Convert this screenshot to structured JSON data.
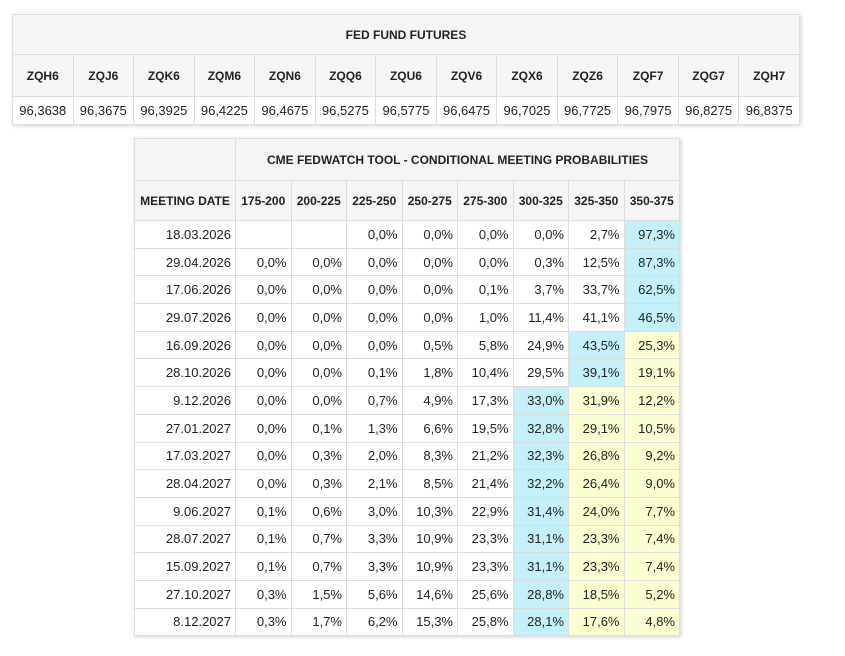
{
  "futures": {
    "title": "FED FUND FUTURES",
    "headers": [
      "ZQH6",
      "ZQJ6",
      "ZQK6",
      "ZQM6",
      "ZQN6",
      "ZQQ6",
      "ZQU6",
      "ZQV6",
      "ZQX6",
      "ZQZ6",
      "ZQF7",
      "ZQG7",
      "ZQH7"
    ],
    "values": [
      "96,3638",
      "96,3675",
      "96,3925",
      "96,4225",
      "96,4675",
      "96,5275",
      "96,5775",
      "96,6475",
      "96,7025",
      "96,7725",
      "96,7975",
      "96,8275",
      "96,8375"
    ]
  },
  "probabilities": {
    "title": "CME FEDWATCH TOOL - CONDITIONAL MEETING PROBABILITIES",
    "headers": [
      "MEETING DATE",
      "175-200",
      "200-225",
      "225-250",
      "250-275",
      "275-300",
      "300-325",
      "325-350",
      "350-375"
    ],
    "highlight_colors": {
      "max": "#c4f1f9",
      "above": "#fdfdd2"
    },
    "rows": [
      [
        "18.03.2026",
        null,
        null,
        "0,0%",
        "0,0%",
        "0,0%",
        "0,0%",
        "2,7%",
        "97,3%"
      ],
      [
        "29.04.2026",
        "0,0%",
        "0,0%",
        "0,0%",
        "0,0%",
        "0,0%",
        "0,3%",
        "12,5%",
        "87,3%"
      ],
      [
        "17.06.2026",
        "0,0%",
        "0,0%",
        "0,0%",
        "0,0%",
        "0,1%",
        "3,7%",
        "33,7%",
        "62,5%"
      ],
      [
        "29.07.2026",
        "0,0%",
        "0,0%",
        "0,0%",
        "0,0%",
        "1,0%",
        "11,4%",
        "41,1%",
        "46,5%"
      ],
      [
        "16.09.2026",
        "0,0%",
        "0,0%",
        "0,0%",
        "0,5%",
        "5,8%",
        "24,9%",
        "43,5%",
        "25,3%"
      ],
      [
        "28.10.2026",
        "0,0%",
        "0,0%",
        "0,1%",
        "1,8%",
        "10,4%",
        "29,5%",
        "39,1%",
        "19,1%"
      ],
      [
        "9.12.2026",
        "0,0%",
        "0,0%",
        "0,7%",
        "4,9%",
        "17,3%",
        "33,0%",
        "31,9%",
        "12,2%"
      ],
      [
        "27.01.2027",
        "0,0%",
        "0,1%",
        "1,3%",
        "6,6%",
        "19,5%",
        "32,8%",
        "29,1%",
        "10,5%"
      ],
      [
        "17.03.2027",
        "0,0%",
        "0,3%",
        "2,0%",
        "8,3%",
        "21,2%",
        "32,3%",
        "26,8%",
        "9,2%"
      ],
      [
        "28.04.2027",
        "0,0%",
        "0,3%",
        "2,1%",
        "8,5%",
        "21,4%",
        "32,2%",
        "26,4%",
        "9,0%"
      ],
      [
        "9.06.2027",
        "0,1%",
        "0,6%",
        "3,0%",
        "10,3%",
        "22,9%",
        "31,4%",
        "24,0%",
        "7,7%"
      ],
      [
        "28.07.2027",
        "0,1%",
        "0,7%",
        "3,3%",
        "10,9%",
        "23,3%",
        "31,1%",
        "23,3%",
        "7,4%"
      ],
      [
        "15.09.2027",
        "0,1%",
        "0,7%",
        "3,3%",
        "10,9%",
        "23,3%",
        "31,1%",
        "23,3%",
        "7,4%"
      ],
      [
        "27.10.2027",
        "0,3%",
        "1,5%",
        "5,6%",
        "14,6%",
        "25,6%",
        "28,8%",
        "18,5%",
        "5,2%"
      ],
      [
        "8.12.2027",
        "0,3%",
        "1,7%",
        "6,2%",
        "15,3%",
        "25,8%",
        "28,1%",
        "17,6%",
        "4,8%"
      ]
    ]
  }
}
